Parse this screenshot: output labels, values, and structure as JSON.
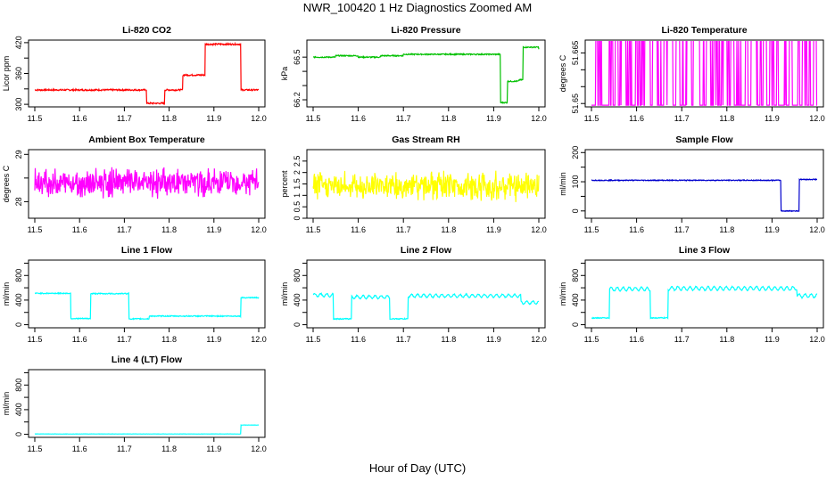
{
  "page": {
    "title": "NWR_100420  1 Hz Diagnostics Zoomed AM",
    "xlabel": "Hour of Day (UTC)"
  },
  "chart_data": [
    {
      "type": "line",
      "title": "Li-820 CO2",
      "ylabel": "Licor ppm",
      "color": "#ff0000",
      "xlim": [
        11.5,
        12.0
      ],
      "ylim": [
        295,
        425
      ],
      "xticks": [
        "11.5",
        "11.6",
        "11.7",
        "11.8",
        "11.9",
        "12.0"
      ],
      "yticks": [
        300,
        360,
        420
      ],
      "yticks_minor": [
        330,
        390
      ],
      "noise": 1.5,
      "steps": [
        [
          11.5,
          328
        ],
        [
          11.75,
          302
        ],
        [
          11.79,
          328
        ],
        [
          11.83,
          357
        ],
        [
          11.88,
          417
        ],
        [
          11.96,
          328
        ],
        [
          12.0,
          328
        ]
      ]
    },
    {
      "type": "line",
      "title": "Li-820 Pressure",
      "ylabel": "kPa",
      "color": "#00c000",
      "xlim": [
        11.5,
        12.0
      ],
      "ylim": [
        66.15,
        66.62
      ],
      "xticks": [
        "11.5",
        "11.6",
        "11.7",
        "11.8",
        "11.9",
        "12.0"
      ],
      "yticks": [
        66.2,
        66.5
      ],
      "yticks_minor": [
        66.3,
        66.4
      ],
      "noise": 0.004,
      "steps": [
        [
          11.5,
          66.5
        ],
        [
          11.55,
          66.51
        ],
        [
          11.6,
          66.5
        ],
        [
          11.65,
          66.51
        ],
        [
          11.7,
          66.52
        ],
        [
          11.75,
          66.52
        ],
        [
          11.8,
          66.52
        ],
        [
          11.85,
          66.52
        ],
        [
          11.9,
          66.52
        ],
        [
          11.915,
          66.18
        ],
        [
          11.93,
          66.33
        ],
        [
          11.955,
          66.34
        ],
        [
          11.965,
          66.57
        ],
        [
          12.0,
          66.56
        ]
      ]
    },
    {
      "type": "line",
      "title": "Li-820 Temperature",
      "ylabel": "degrees C",
      "color": "#ff00ff",
      "xlim": [
        11.5,
        12.0
      ],
      "ylim": [
        51.649,
        51.6688
      ],
      "xticks": [
        "11.5",
        "11.6",
        "11.7",
        "11.8",
        "11.9",
        "12.0"
      ],
      "yticks": [
        51.65,
        51.665
      ],
      "yticks_minor": [
        51.655,
        51.66
      ],
      "toggle": {
        "low": 51.6495,
        "high": 51.6688
      }
    },
    {
      "type": "line",
      "title": "Ambient Box Temperature",
      "ylabel": "degrees C",
      "color": "#ff00ff",
      "xlim": [
        11.5,
        12.0
      ],
      "ylim": [
        27.65,
        29.1
      ],
      "xticks": [
        "11.5",
        "11.6",
        "11.7",
        "11.8",
        "11.9",
        "12.0"
      ],
      "yticks": [
        28.0,
        29.0
      ],
      "yticks_minor": [
        28.5
      ],
      "noise": 0.22,
      "base": 28.4
    },
    {
      "type": "line",
      "title": "Gas Stream RH",
      "ylabel": "percent",
      "color": "#ffff00",
      "xlim": [
        11.5,
        12.0
      ],
      "ylim": [
        0,
        3.0
      ],
      "xticks": [
        "11.5",
        "11.6",
        "11.7",
        "11.8",
        "11.9",
        "12.0"
      ],
      "yticks": [
        0.0,
        0.5,
        1.0,
        1.5,
        2.0,
        2.5
      ],
      "noise": 0.45,
      "base": 1.4
    },
    {
      "type": "line",
      "title": "Sample Flow",
      "ylabel": "ml/min",
      "color": "#0000cd",
      "xlim": [
        11.5,
        12.0
      ],
      "ylim": [
        -25,
        210
      ],
      "xticks": [
        "11.5",
        "11.6",
        "11.7",
        "11.8",
        "11.9",
        "12.0"
      ],
      "yticks": [
        0,
        100,
        200
      ],
      "yticks_minor": [
        50,
        150
      ],
      "noise": 1.5,
      "steps": [
        [
          11.5,
          105
        ],
        [
          11.915,
          105
        ],
        [
          11.92,
          0
        ],
        [
          11.955,
          0
        ],
        [
          11.96,
          108
        ],
        [
          12.0,
          108
        ]
      ]
    },
    {
      "type": "line",
      "title": "Line 1 Flow",
      "ylabel": "ml/min",
      "color": "#00ffff",
      "xlim": [
        11.5,
        12.0
      ],
      "ylim": [
        -50,
        1050
      ],
      "xticks": [
        "11.5",
        "11.6",
        "11.7",
        "11.8",
        "11.9",
        "12.0"
      ],
      "yticks": [
        0,
        400,
        800
      ],
      "yticks_minor": [
        200,
        600,
        1000
      ],
      "noise": 8,
      "steps": [
        [
          11.5,
          510
        ],
        [
          11.575,
          510
        ],
        [
          11.58,
          100
        ],
        [
          11.62,
          100
        ],
        [
          11.625,
          505
        ],
        [
          11.705,
          505
        ],
        [
          11.71,
          95
        ],
        [
          11.75,
          95
        ],
        [
          11.755,
          140
        ],
        [
          11.955,
          140
        ],
        [
          11.96,
          440
        ],
        [
          12.0,
          440
        ]
      ]
    },
    {
      "type": "line",
      "title": "Line 2 Flow",
      "ylabel": "ml/min",
      "color": "#00ffff",
      "xlim": [
        11.5,
        12.0
      ],
      "ylim": [
        -50,
        1050
      ],
      "xticks": [
        "11.5",
        "11.6",
        "11.7",
        "11.8",
        "11.9",
        "12.0"
      ],
      "yticks": [
        0,
        400,
        800
      ],
      "yticks_minor": [
        200,
        600,
        1000
      ],
      "noise": 8,
      "wave": 25,
      "steps": [
        [
          11.5,
          480
        ],
        [
          11.54,
          480
        ],
        [
          11.545,
          95
        ],
        [
          11.58,
          95
        ],
        [
          11.585,
          450
        ],
        [
          11.665,
          450
        ],
        [
          11.67,
          95
        ],
        [
          11.705,
          95
        ],
        [
          11.71,
          470
        ],
        [
          11.955,
          470
        ],
        [
          11.96,
          360
        ],
        [
          12.0,
          360
        ]
      ]
    },
    {
      "type": "line",
      "title": "Line 3 Flow",
      "ylabel": "ml/min",
      "color": "#00ffff",
      "xlim": [
        11.5,
        12.0
      ],
      "ylim": [
        -50,
        1050
      ],
      "xticks": [
        "11.5",
        "11.6",
        "11.7",
        "11.8",
        "11.9",
        "12.0"
      ],
      "yticks": [
        0,
        400,
        800
      ],
      "yticks_minor": [
        200,
        600,
        1000
      ],
      "noise": 8,
      "wave": 30,
      "steps": [
        [
          11.5,
          110
        ],
        [
          11.535,
          110
        ],
        [
          11.54,
          580
        ],
        [
          11.625,
          570
        ],
        [
          11.63,
          110
        ],
        [
          11.665,
          110
        ],
        [
          11.67,
          590
        ],
        [
          11.95,
          590
        ],
        [
          11.955,
          470
        ],
        [
          12.0,
          470
        ]
      ]
    },
    {
      "type": "line",
      "title": "Line 4 (LT) Flow",
      "ylabel": "ml/min",
      "color": "#00ffff",
      "xlim": [
        11.5,
        12.0
      ],
      "ylim": [
        -50,
        1050
      ],
      "xticks": [
        "11.5",
        "11.6",
        "11.7",
        "11.8",
        "11.9",
        "12.0"
      ],
      "yticks": [
        0,
        400,
        800
      ],
      "yticks_minor": [
        200,
        600,
        1000
      ],
      "noise": 2,
      "steps": [
        [
          11.5,
          5
        ],
        [
          11.955,
          5
        ],
        [
          11.96,
          150
        ],
        [
          12.0,
          150
        ]
      ]
    }
  ]
}
